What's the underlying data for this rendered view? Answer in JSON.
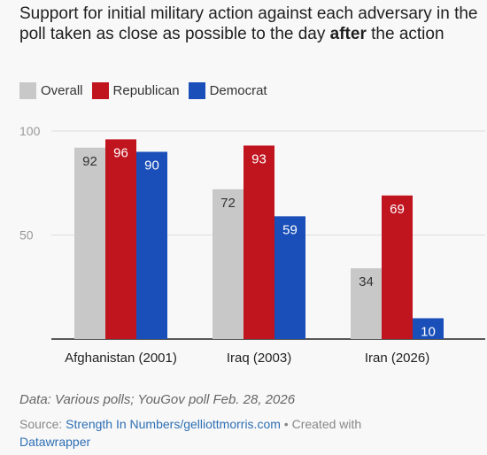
{
  "chart_data": {
    "type": "bar",
    "title_part1": "Support for initial military action against each adversary in the poll taken as close as possible to the day ",
    "title_bold": "after",
    "title_part2": " the action",
    "categories": [
      "Afghanistan (2001)",
      "Iraq (2003)",
      "Iran (2026)"
    ],
    "series": [
      {
        "name": "Overall",
        "color": "#c8c8c8",
        "values": [
          92,
          72,
          34
        ]
      },
      {
        "name": "Republican",
        "color": "#c0151f",
        "values": [
          96,
          93,
          69
        ]
      },
      {
        "name": "Democrat",
        "color": "#1a4fb9",
        "values": [
          90,
          59,
          10
        ]
      }
    ],
    "yticks": [
      50,
      100
    ],
    "ylim": [
      0,
      100
    ],
    "grid": true,
    "legend_position": "top-left",
    "notes": "Data: Various polls; YouGov poll Feb. 28, 2026",
    "source_label": "Source: ",
    "source_link": "Strength In Numbers/gelliottmorris.com",
    "source_suffix": " • Created with ",
    "tool_link": "Datawrapper"
  }
}
